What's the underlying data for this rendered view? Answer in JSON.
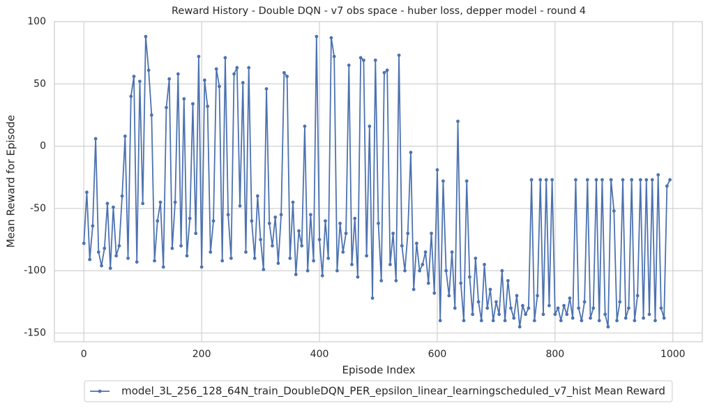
{
  "chart_data": {
    "type": "line",
    "title": "Reward History - Double DQN - v7 obs space - huber loss, depper model - round 4",
    "x_label": "Episode Index",
    "y_label": "Mean Reward for Episode",
    "x": [
      0,
      5,
      10,
      15,
      20,
      25,
      30,
      35,
      40,
      45,
      50,
      55,
      60,
      65,
      70,
      75,
      80,
      85,
      90,
      95,
      100,
      105,
      110,
      115,
      120,
      125,
      130,
      135,
      140,
      145,
      150,
      155,
      160,
      165,
      170,
      175,
      180,
      185,
      190,
      195,
      200,
      205,
      210,
      215,
      220,
      225,
      230,
      235,
      240,
      245,
      250,
      255,
      260,
      265,
      270,
      275,
      280,
      285,
      290,
      295,
      300,
      305,
      310,
      315,
      320,
      325,
      330,
      335,
      340,
      345,
      350,
      355,
      360,
      365,
      370,
      375,
      380,
      385,
      390,
      395,
      400,
      405,
      410,
      415,
      420,
      425,
      430,
      435,
      440,
      445,
      450,
      455,
      460,
      465,
      470,
      475,
      480,
      485,
      490,
      495,
      500,
      505,
      510,
      515,
      520,
      525,
      530,
      535,
      540,
      545,
      550,
      555,
      560,
      565,
      570,
      575,
      580,
      585,
      590,
      595,
      600,
      605,
      610,
      615,
      620,
      625,
      630,
      635,
      640,
      645,
      650,
      655,
      660,
      665,
      670,
      675,
      680,
      685,
      690,
      695,
      700,
      705,
      710,
      715,
      720,
      725,
      730,
      735,
      740,
      745,
      750,
      755,
      760,
      765,
      770,
      775,
      780,
      785,
      790,
      795,
      800,
      805,
      810,
      815,
      820,
      825,
      830,
      835,
      840,
      845,
      850,
      855,
      860,
      865,
      870,
      875,
      880,
      885,
      890,
      895,
      900,
      905,
      910,
      915,
      920,
      925,
      930,
      935,
      940,
      945,
      950,
      955,
      960,
      965,
      970,
      975,
      980,
      985,
      990,
      995
    ],
    "series": [
      {
        "name": "model_3L_256_128_64N_train_DoubleDQN_PER_epsilon_linear_learningscheduled_v7_hist Mean Reward",
        "color": "#4c72b0",
        "values": [
          -78,
          -37,
          -91,
          -64,
          6,
          -85,
          -96,
          -82,
          -46,
          -98,
          -49,
          -88,
          -80,
          -40,
          8,
          -90,
          40,
          56,
          -93,
          52,
          -46,
          88,
          61,
          25,
          -92,
          -60,
          -45,
          -97,
          31,
          54,
          -82,
          -45,
          58,
          -80,
          38,
          -88,
          -58,
          34,
          -70,
          72,
          -97,
          53,
          32,
          -85,
          -60,
          62,
          48,
          -92,
          71,
          -55,
          -90,
          58,
          63,
          -48,
          51,
          -85,
          63,
          -60,
          -90,
          -40,
          -75,
          -99,
          46,
          -62,
          -80,
          -57,
          -94,
          -55,
          59,
          56,
          -90,
          -45,
          -103,
          -68,
          -80,
          16,
          -100,
          -55,
          -92,
          88,
          -75,
          -104,
          -60,
          -90,
          87,
          72,
          -100,
          -62,
          -85,
          -70,
          65,
          -95,
          -58,
          -105,
          71,
          69,
          -88,
          16,
          -122,
          69,
          -62,
          -108,
          59,
          61,
          -95,
          -70,
          -108,
          73,
          -80,
          -100,
          -70,
          -5,
          -115,
          -78,
          -100,
          -95,
          -85,
          -110,
          -70,
          -118,
          -19,
          -140,
          -28,
          -100,
          -120,
          -85,
          -130,
          20,
          -110,
          -140,
          -28,
          -105,
          -135,
          -90,
          -125,
          -140,
          -95,
          -130,
          -115,
          -140,
          -125,
          -135,
          -100,
          -140,
          -108,
          -130,
          -138,
          -120,
          -145,
          -128,
          -135,
          -130,
          -27,
          -140,
          -120,
          -27,
          -135,
          -27,
          -128,
          -27,
          -135,
          -130,
          -140,
          -128,
          -135,
          -122,
          -138,
          -27,
          -130,
          -140,
          -125,
          -27,
          -138,
          -130,
          -27,
          -140,
          -27,
          -135,
          -145,
          -27,
          -52,
          -140,
          -125,
          -27,
          -138,
          -130,
          -27,
          -140,
          -120,
          -27,
          -138,
          -27,
          -135,
          -27,
          -140,
          -23,
          -130,
          -138,
          -32,
          -27
        ]
      }
    ],
    "xlim": [
      -50,
      1050
    ],
    "ylim": [
      -157,
      100
    ],
    "xticks": [
      0,
      200,
      400,
      600,
      800,
      1000
    ],
    "yticks": [
      -150,
      -100,
      -50,
      0,
      50,
      100
    ],
    "grid": true,
    "legend": "below"
  }
}
